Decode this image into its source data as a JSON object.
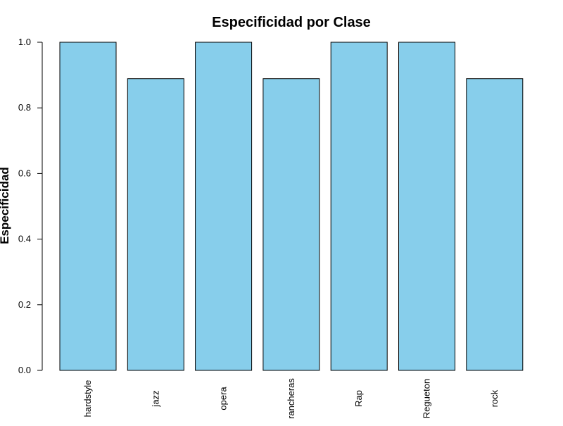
{
  "colors": {
    "bar_fill": "#87CEEB",
    "bar_stroke": "#000000",
    "axis": "#000000",
    "background": "#ffffff"
  },
  "chart_data": {
    "type": "bar",
    "title": "Especificidad por Clase",
    "xlabel": "",
    "ylabel": "Especificidad",
    "categories": [
      "hardstyle",
      "jazz",
      "opera",
      "rancheras",
      "Rap",
      "Regueton",
      "rock"
    ],
    "values": [
      1.0,
      0.889,
      1.0,
      0.889,
      1.0,
      1.0,
      0.889
    ],
    "ylim": [
      0,
      1
    ],
    "yticks": [
      "0.0",
      "0.2",
      "0.4",
      "0.6",
      "0.8",
      "1.0"
    ],
    "grid": false,
    "legend": "none",
    "category_label_orientation": "vertical"
  }
}
